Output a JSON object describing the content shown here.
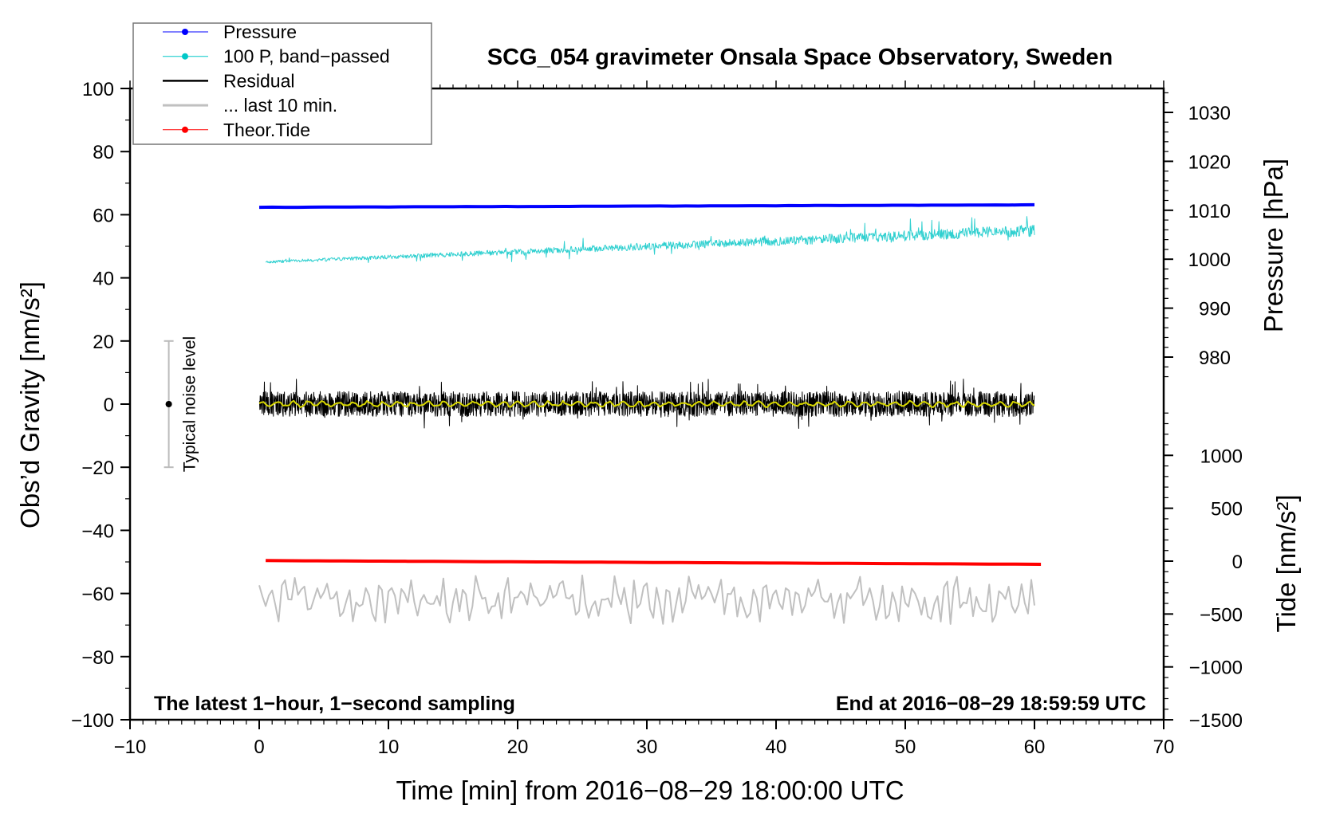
{
  "chart_data": {
    "type": "line",
    "title": "SCG_054 gravimeter Onsala Space Observatory, Sweden",
    "xlabel": "Time [min] from 2016−08−29 18:00:00 UTC",
    "ylabel_left": "Obs’d Gravity [nm/s²]",
    "ylabel_right_pressure": "Pressure [hPa]",
    "ylabel_right_tide": "Tide [nm/s²]",
    "xlim": [
      -10,
      70
    ],
    "ylim": [
      -100,
      100
    ],
    "x_ticks": [
      "−10",
      "0",
      "10",
      "20",
      "30",
      "40",
      "50",
      "60",
      "70"
    ],
    "x_tick_values": [
      -10,
      0,
      10,
      20,
      30,
      40,
      50,
      60,
      70
    ],
    "y_ticks": [
      "−100",
      "−80",
      "−60",
      "−40",
      "−20",
      "0",
      "20",
      "40",
      "60",
      "80",
      "100"
    ],
    "y_tick_values": [
      -100,
      -80,
      -60,
      -40,
      -20,
      0,
      20,
      40,
      60,
      80,
      100
    ],
    "pressure_ticks": [
      "980",
      "990",
      "1000",
      "1010",
      "1020",
      "1030"
    ],
    "pressure_tick_values": [
      980,
      990,
      1000,
      1010,
      1020,
      1030
    ],
    "tide_ticks": [
      "−1500",
      "−1000",
      "−500",
      "0",
      "500",
      "1000"
    ],
    "tide_tick_values": [
      -1500,
      -1000,
      -500,
      0,
      500,
      1000
    ],
    "legend": {
      "placement": "top-left",
      "entries": [
        {
          "label": "Pressure",
          "color": "#0000ff",
          "marker": true
        },
        {
          "label": "100 P, band−passed",
          "color": "#00c8c8",
          "marker": true
        },
        {
          "label": "Residual",
          "color": "#000000",
          "marker": false
        },
        {
          "label": "... last 10 min.",
          "color": "#c0c0c0",
          "marker": false
        },
        {
          "label": "Theor.Tide",
          "color": "#ff0000",
          "marker": true
        }
      ]
    },
    "series": [
      {
        "name": "Pressure",
        "axis": "pressure_hPa",
        "x_range": [
          0,
          60
        ],
        "start": 1010.6,
        "end": 1011.1,
        "color": "#0000ff"
      },
      {
        "name": "100 P, band-passed",
        "axis": "gravity",
        "x_range": [
          0.5,
          60
        ],
        "trend_start": 45,
        "trend_end": 55,
        "noise_amplitude": 2.5,
        "color": "#30d0d0"
      },
      {
        "name": "Residual",
        "axis": "gravity",
        "x_range": [
          0,
          60
        ],
        "mean": 0,
        "noise_amplitude": 4,
        "color": "#000000"
      },
      {
        "name": "Residual smoothed",
        "axis": "gravity",
        "x_range": [
          0,
          60
        ],
        "mean": 0,
        "noise_amplitude": 1,
        "color": "#d8d800"
      },
      {
        "name": "... last 10 min.",
        "axis": "gravity",
        "x_range": [
          0,
          60
        ],
        "mean": -62,
        "noise_amplitude": 6,
        "color": "#c0c0c0"
      },
      {
        "name": "Theor.Tide",
        "axis": "tide",
        "x_range": [
          0.5,
          60.5
        ],
        "start": 5,
        "end": -30,
        "color": "#ff0000"
      }
    ],
    "noise_bar": {
      "label": "Typical noise level",
      "x": -7,
      "center": 0,
      "range": [
        -20,
        20
      ]
    },
    "annotations": {
      "left": "The latest 1−hour, 1−second sampling",
      "right": "End at 2016−08−29 18:59:59 UTC"
    }
  }
}
